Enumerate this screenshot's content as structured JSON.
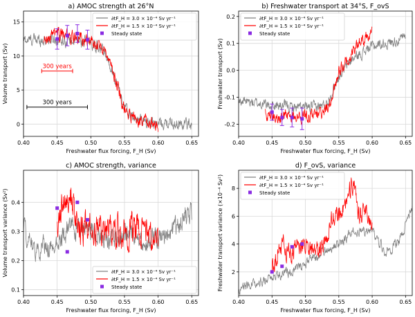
{
  "chart_data": [
    {
      "type": "line",
      "title": "a) AMOC strength at 26°N",
      "xlabel": "Freshwater flux forcing, F_H (Sv)",
      "ylabel": "Volume transport (Sv)",
      "xlim": [
        0.4,
        0.66
      ],
      "ylim": [
        -1.8,
        16.6
      ],
      "xticks": [
        0.4,
        0.45,
        0.5,
        0.55,
        0.6,
        0.65
      ],
      "yticks": [
        0,
        5,
        10,
        15
      ],
      "grid": true,
      "legend": "top-right",
      "series": [
        {
          "name": "∂tF_H = 3.0 × 10⁻⁴ Sv yr⁻¹",
          "color": "#808080",
          "noise": 0.7,
          "x": [
            0.4,
            0.45,
            0.5,
            0.52,
            0.53,
            0.54,
            0.55,
            0.56,
            0.58,
            0.6,
            0.62,
            0.65
          ],
          "y": [
            12.3,
            12.5,
            12.0,
            10.5,
            8.5,
            5.5,
            2.5,
            1.0,
            0.3,
            0.1,
            0.0,
            0.0
          ]
        },
        {
          "name": "∂tF_H = 1.5 × 10⁻⁴ Sv yr⁻¹",
          "color": "#ff0000",
          "noise": 0.8,
          "x": [
            0.43,
            0.45,
            0.5,
            0.52,
            0.53,
            0.54,
            0.55,
            0.57,
            0.6
          ],
          "y": [
            12.5,
            13.2,
            12.3,
            11.0,
            9.0,
            5.5,
            2.0,
            0.5,
            0.0
          ]
        }
      ],
      "steady_state": {
        "name": "Steady state",
        "color": "#8a2be2",
        "x": [
          0.45,
          0.465,
          0.48,
          0.495
        ],
        "y": [
          12.5,
          13.0,
          13.3,
          12.4
        ],
        "err": [
          1.5,
          1.5,
          1.3,
          1.4
        ]
      },
      "annotations": [
        {
          "label": "300 years",
          "color": "#ff0000",
          "x": [
            0.427,
            0.473
          ],
          "y": 7.8
        },
        {
          "label": "300 years",
          "color": "#000000",
          "x": [
            0.405,
            0.495
          ],
          "y": 2.5
        }
      ]
    },
    {
      "type": "line",
      "title": "b) Freshwater transport at 34°S, F_ovS",
      "xlabel": "Freshwater flux forcing, F_H (Sv)",
      "ylabel": "Freshwater transport (Sv)",
      "xlim": [
        0.4,
        0.66
      ],
      "ylim": [
        -0.245,
        0.22
      ],
      "xticks": [
        0.4,
        0.45,
        0.5,
        0.55,
        0.6,
        0.65
      ],
      "yticks": [
        -0.2,
        -0.1,
        0.0,
        0.1,
        0.2
      ],
      "grid": true,
      "legend": "top-left",
      "series": [
        {
          "name": "∂tF_H = 3.0 × 10⁻⁴ Sv yr⁻¹",
          "color": "#808080",
          "noise": 0.016,
          "x": [
            0.4,
            0.42,
            0.45,
            0.5,
            0.53,
            0.54,
            0.55,
            0.57,
            0.6,
            0.62,
            0.65
          ],
          "y": [
            -0.11,
            -0.12,
            -0.13,
            -0.14,
            -0.13,
            -0.08,
            -0.02,
            0.04,
            0.09,
            0.1,
            0.12
          ]
        },
        {
          "name": "∂tF_H = 1.5 × 10⁻⁴ Sv yr⁻¹",
          "color": "#ff0000",
          "noise": 0.02,
          "x": [
            0.44,
            0.46,
            0.5,
            0.53,
            0.54,
            0.55,
            0.57,
            0.59,
            0.6
          ],
          "y": [
            -0.16,
            -0.17,
            -0.17,
            -0.15,
            -0.1,
            -0.01,
            0.07,
            0.12,
            0.13
          ]
        }
      ],
      "steady_state": {
        "name": "Steady state",
        "color": "#8a2be2",
        "x": [
          0.45,
          0.465,
          0.48,
          0.495
        ],
        "y": [
          -0.155,
          -0.175,
          -0.175,
          -0.18
        ],
        "err": [
          0.03,
          0.03,
          0.035,
          0.04
        ]
      }
    },
    {
      "type": "line",
      "title": "c) AMOC strength, variance",
      "xlabel": "Freshwater flux forcing, F_H (Sv)",
      "ylabel": "Volume transport variance (Sv²)",
      "xlim": [
        0.4,
        0.66
      ],
      "ylim": [
        0.08,
        0.51
      ],
      "xticks": [
        0.4,
        0.45,
        0.5,
        0.55,
        0.6,
        0.65
      ],
      "yticks": [
        0.1,
        0.2,
        0.3,
        0.4
      ],
      "grid": true,
      "legend": "bottom-right",
      "series": [
        {
          "name": "∂tF_H = 3.0 × 10⁻⁴ Sv yr⁻¹",
          "color": "#808080",
          "noise": 0.028,
          "x": [
            0.4,
            0.42,
            0.45,
            0.47,
            0.5,
            0.53,
            0.55,
            0.58,
            0.6,
            0.62,
            0.65
          ],
          "y": [
            0.31,
            0.23,
            0.27,
            0.31,
            0.3,
            0.27,
            0.29,
            0.26,
            0.27,
            0.3,
            0.37
          ]
        },
        {
          "name": "∂tF_H = 1.5 × 10⁻⁴ Sv yr⁻¹",
          "color": "#ff0000",
          "noise": 0.045,
          "x": [
            0.45,
            0.46,
            0.47,
            0.48,
            0.5,
            0.52,
            0.55,
            0.57,
            0.59,
            0.6
          ],
          "y": [
            0.32,
            0.4,
            0.42,
            0.32,
            0.3,
            0.31,
            0.3,
            0.32,
            0.28,
            0.27
          ]
        }
      ],
      "steady_state": {
        "name": "Steady state",
        "color": "#8a2be2",
        "x": [
          0.45,
          0.465,
          0.48,
          0.495
        ],
        "y": [
          0.38,
          0.23,
          0.4,
          0.34
        ]
      }
    },
    {
      "type": "line",
      "title": "d) F_ovS, variance",
      "xlabel": "Freshwater flux forcing, F_H (Sv)",
      "ylabel": "Freshwater transport variance (×10⁻⁴ Sv²)",
      "xlim": [
        0.4,
        0.66
      ],
      "ylim": [
        0.3,
        9.3
      ],
      "xticks": [
        0.4,
        0.45,
        0.5,
        0.55,
        0.6,
        0.65
      ],
      "yticks": [
        2,
        4,
        6,
        8
      ],
      "grid": true,
      "legend": "top-left",
      "series": [
        {
          "name": "∂tF_H = 3.0 × 10⁻⁴ Sv yr⁻¹",
          "color": "#808080",
          "noise": 0.28,
          "x": [
            0.4,
            0.42,
            0.45,
            0.48,
            0.5,
            0.52,
            0.55,
            0.57,
            0.6,
            0.62,
            0.64,
            0.66
          ],
          "y": [
            0.7,
            1.1,
            1.6,
            2.1,
            2.6,
            3.2,
            4.0,
            4.8,
            5.0,
            3.4,
            4.2,
            6.6
          ]
        },
        {
          "name": "∂tF_H = 1.5 × 10⁻⁴ Sv yr⁻¹",
          "color": "#ff0000",
          "noise": 0.6,
          "x": [
            0.45,
            0.46,
            0.48,
            0.5,
            0.52,
            0.54,
            0.56,
            0.57,
            0.58,
            0.59,
            0.6
          ],
          "y": [
            2.2,
            3.8,
            3.5,
            4.2,
            3.3,
            5.8,
            7.0,
            8.5,
            6.0,
            6.6,
            5.5
          ]
        }
      ],
      "steady_state": {
        "name": "Steady state",
        "color": "#8a2be2",
        "x": [
          0.45,
          0.465,
          0.48,
          0.495
        ],
        "y": [
          2.0,
          2.4,
          3.8,
          4.0
        ]
      }
    }
  ]
}
